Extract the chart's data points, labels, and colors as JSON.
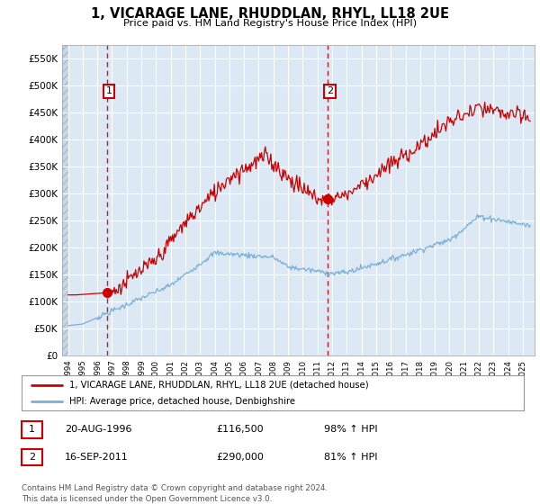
{
  "title": "1, VICARAGE LANE, RHUDDLAN, RHYL, LL18 2UE",
  "subtitle": "Price paid vs. HM Land Registry's House Price Index (HPI)",
  "ylim": [
    0,
    575000
  ],
  "yticks": [
    0,
    50000,
    100000,
    150000,
    200000,
    250000,
    300000,
    350000,
    400000,
    450000,
    500000,
    550000
  ],
  "ytick_labels": [
    "£0",
    "£50K",
    "£100K",
    "£150K",
    "£200K",
    "£250K",
    "£300K",
    "£350K",
    "£400K",
    "£450K",
    "£500K",
    "£550K"
  ],
  "plot_bg_color": "#dce9f5",
  "grid_color": "#ffffff",
  "sale1_date": 1996.64,
  "sale1_price": 116500,
  "sale2_date": 2011.71,
  "sale2_price": 290000,
  "legend_line1": "1, VICARAGE LANE, RHUDDLAN, RHYL, LL18 2UE (detached house)",
  "legend_line2": "HPI: Average price, detached house, Denbighshire",
  "table_row1": [
    "1",
    "20-AUG-1996",
    "£116,500",
    "98% ↑ HPI"
  ],
  "table_row2": [
    "2",
    "16-SEP-2011",
    "£290,000",
    "81% ↑ HPI"
  ],
  "footer": "Contains HM Land Registry data © Crown copyright and database right 2024.\nThis data is licensed under the Open Government Licence v3.0.",
  "price_color": "#cc0000",
  "hpi_color": "#7bafd4",
  "dashed_line_color": "#cc0000",
  "xlim_left": 1993.6,
  "xlim_right": 2025.8
}
